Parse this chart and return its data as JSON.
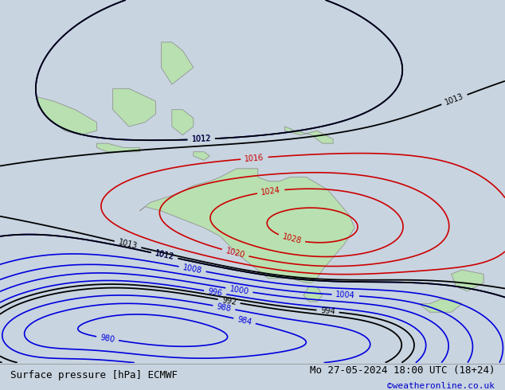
{
  "title_left": "Surface pressure [hPa] ECMWF",
  "title_right": "Mo 27-05-2024 18:00 UTC (18+24)",
  "credit": "©weatheronline.co.uk",
  "background_color": "#d0d8e8",
  "land_color": "#b8e0b0",
  "figsize": [
    6.34,
    4.9
  ],
  "dpi": 100,
  "font_family": "monospace",
  "title_fontsize": 9,
  "credit_fontsize": 8,
  "credit_color": "#0000cc"
}
